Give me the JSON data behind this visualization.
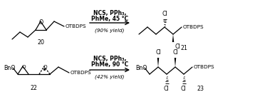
{
  "background": "#ffffff",
  "top_reaction": {
    "reagents_line1": "NCS, PPh₃,",
    "reagents_line2": "PhMe, 45 °C",
    "yield_text": "(90% yield)",
    "compound_left": "20",
    "compound_right": "21"
  },
  "bottom_reaction": {
    "reagents_line1": "NCS, PPh₃,",
    "reagents_line2": "PhMe, 90 °C",
    "yield_text": "(42% yield)",
    "compound_left": "22",
    "compound_right": "23"
  }
}
